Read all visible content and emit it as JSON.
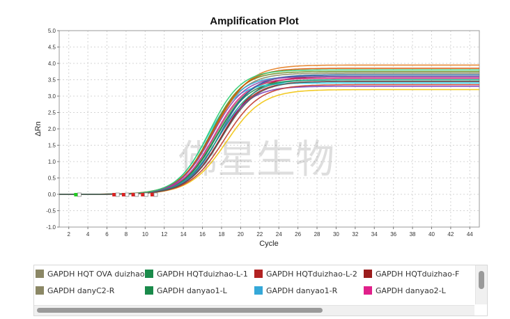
{
  "chart_data": {
    "type": "line",
    "title": "Amplification Plot",
    "xlabel": "Cycle",
    "ylabel": "ΔRn",
    "xlim": [
      1,
      45
    ],
    "ylim": [
      -1.0,
      5.0
    ],
    "xticks": [
      2,
      4,
      6,
      8,
      10,
      12,
      14,
      16,
      18,
      20,
      22,
      24,
      26,
      28,
      30,
      32,
      34,
      36,
      38,
      40,
      42,
      44
    ],
    "yticks": [
      -1.0,
      -0.5,
      0.0,
      0.5,
      1.0,
      1.5,
      2.0,
      2.5,
      3.0,
      3.5,
      4.0,
      4.5,
      5.0
    ],
    "grid": true,
    "legend_position": "bottom",
    "series": [
      {
        "name": "GAPDH  HQT OVA duizhao-F",
        "color": "#8b8765",
        "plateau": 3.55,
        "midpoint": 17.3,
        "slope": 1.75
      },
      {
        "name": "GAPDH  HQTduizhao-L-1",
        "color": "#1a8a4a",
        "plateau": 3.65,
        "midpoint": 17.6,
        "slope": 1.8
      },
      {
        "name": "GAPDH  HQTduizhao-L-2",
        "color": "#b22222",
        "plateau": 3.45,
        "midpoint": 17.9,
        "slope": 1.75
      },
      {
        "name": "GAPDH  HQTduizhao-F",
        "color": "#9b1c1c",
        "plateau": 3.6,
        "midpoint": 18.1,
        "slope": 1.8
      },
      {
        "name": "GAPDH  danyC2-R",
        "color": "#8b8765",
        "plateau": 3.7,
        "midpoint": 17.0,
        "slope": 1.7
      },
      {
        "name": "GAPDH  danyao1-L",
        "color": "#1a8a4a",
        "plateau": 3.5,
        "midpoint": 17.4,
        "slope": 1.75
      },
      {
        "name": "GAPDH  danyao1-R",
        "color": "#35a8d8",
        "plateau": 3.6,
        "midpoint": 16.8,
        "slope": 1.6
      },
      {
        "name": "GAPDH  danyao2-L",
        "color": "#e0208a",
        "plateau": 3.55,
        "midpoint": 17.2,
        "slope": 1.7
      },
      {
        "name": "",
        "color": "#22d3ee",
        "plateau": 3.4,
        "midpoint": 16.4,
        "slope": 1.6
      },
      {
        "name": "",
        "color": "#e67e22",
        "plateau": 3.95,
        "midpoint": 17.3,
        "slope": 1.8
      },
      {
        "name": "",
        "color": "#7b3fbf",
        "plateau": 3.3,
        "midpoint": 17.5,
        "slope": 1.75
      },
      {
        "name": "",
        "color": "#2e5fa8",
        "plateau": 3.65,
        "midpoint": 17.8,
        "slope": 1.7
      },
      {
        "name": "",
        "color": "#f1c40f",
        "plateau": 3.2,
        "midpoint": 18.5,
        "slope": 1.9
      },
      {
        "name": "",
        "color": "#6b8e23",
        "plateau": 3.75,
        "midpoint": 16.9,
        "slope": 1.65
      },
      {
        "name": "",
        "color": "#d35400",
        "plateau": 3.85,
        "midpoint": 17.1,
        "slope": 1.75
      },
      {
        "name": "",
        "color": "#16a085",
        "plateau": 3.5,
        "midpoint": 17.7,
        "slope": 1.8
      },
      {
        "name": "",
        "color": "#c0392b",
        "plateau": 3.35,
        "midpoint": 18.3,
        "slope": 1.85
      },
      {
        "name": "",
        "color": "#8e44ad",
        "plateau": 3.6,
        "midpoint": 17.0,
        "slope": 1.7
      },
      {
        "name": "",
        "color": "#2ecc71",
        "plateau": 3.8,
        "midpoint": 16.7,
        "slope": 1.65
      },
      {
        "name": "",
        "color": "#555555",
        "plateau": 3.45,
        "midpoint": 18.0,
        "slope": 1.8
      }
    ],
    "baseline_markers": [
      {
        "cycle": 3,
        "color": "#22cc22"
      },
      {
        "cycle": 7,
        "color": "#dd2222"
      },
      {
        "cycle": 8,
        "color": "#dd2222"
      },
      {
        "cycle": 9,
        "color": "#dd2222"
      },
      {
        "cycle": 10,
        "color": "#dd2222"
      },
      {
        "cycle": 11,
        "color": "#dd2222"
      }
    ],
    "watermark": "佛星生物"
  },
  "legend": {
    "items": [
      {
        "label": "GAPDH  HQT OVA duizhao-F",
        "color": "#8b8765"
      },
      {
        "label": "GAPDH  HQTduizhao-L-1",
        "color": "#1a8a4a"
      },
      {
        "label": "GAPDH  HQTduizhao-L-2",
        "color": "#b22222"
      },
      {
        "label": "GAPDH  HQTduizhao-F",
        "color": "#9b1c1c"
      },
      {
        "label": "GAPDH  danyC2-R",
        "color": "#8b8765"
      },
      {
        "label": "GAPDH  danyao1-L",
        "color": "#1a8a4a"
      },
      {
        "label": "GAPDH  danyao1-R",
        "color": "#35a8d8"
      },
      {
        "label": "GAPDH  danyao2-L",
        "color": "#e0208a"
      }
    ]
  }
}
